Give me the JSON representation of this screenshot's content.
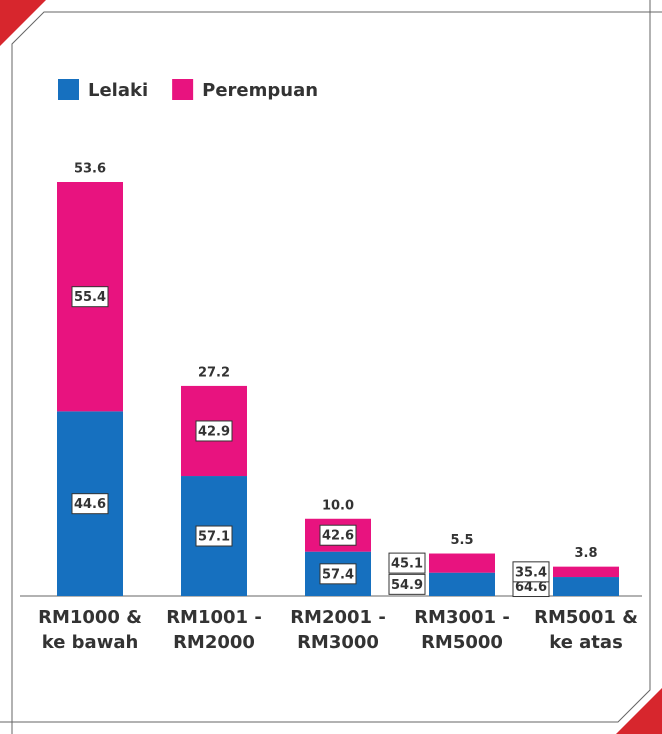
{
  "chart_data": {
    "type": "bar",
    "categories": [
      "RM1000 &\nke bawah",
      "RM1001 -\nRM2000",
      "RM2001 -\nRM3000",
      "RM3001 -\nRM5000",
      "RM5001 &\nke atas"
    ],
    "series": [
      {
        "name": "Lelaki",
        "color": "#1670bf",
        "values": [
          44.6,
          57.1,
          57.4,
          54.9,
          64.6
        ]
      },
      {
        "name": "Perempuan",
        "color": "#e8137f",
        "values": [
          55.4,
          42.9,
          42.6,
          45.1,
          35.4
        ]
      }
    ],
    "totals": {
      "values": [
        53.6,
        27.2,
        10.0,
        5.5,
        3.8
      ],
      "value_labels": [
        "53.6",
        "27.2",
        "10.0",
        "5.5",
        "3.8"
      ]
    },
    "legend": "top-left"
  }
}
